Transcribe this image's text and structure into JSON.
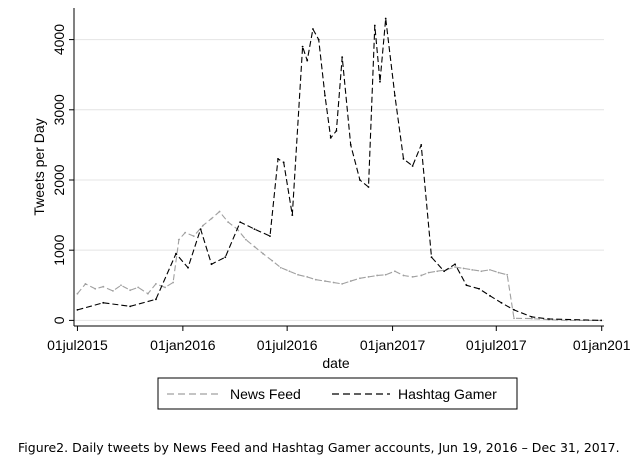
{
  "caption": "Figure2. Daily tweets by News Feed and Hashtag Gamer accounts, Jun 19, 2016 – Dec 31, 2017.",
  "chart_data": {
    "type": "line",
    "xlabel": "date",
    "ylabel": "Tweets per Day",
    "xlim": [
      "2015-06-25",
      "2018-01-05"
    ],
    "ylim": [
      -80,
      4450
    ],
    "x_ticks": [
      {
        "date": "2015-07-01",
        "label": "01jul2015"
      },
      {
        "date": "2016-01-01",
        "label": "01jan2016"
      },
      {
        "date": "2016-07-01",
        "label": "01jul2016"
      },
      {
        "date": "2017-01-01",
        "label": "01jan2017"
      },
      {
        "date": "2017-07-01",
        "label": "01jul2017"
      },
      {
        "date": "2018-01-01",
        "label": "01jan201"
      }
    ],
    "y_ticks": [
      0,
      1000,
      2000,
      3000,
      4000
    ],
    "grid": "horizontal",
    "legend_position": "bottom",
    "series": [
      {
        "name": "News Feed",
        "color": "#a0a0a0",
        "style": "dashed",
        "points": [
          [
            "2015-07-01",
            380
          ],
          [
            "2015-07-15",
            520
          ],
          [
            "2015-08-01",
            450
          ],
          [
            "2015-08-15",
            480
          ],
          [
            "2015-09-01",
            420
          ],
          [
            "2015-09-15",
            500
          ],
          [
            "2015-10-01",
            430
          ],
          [
            "2015-10-15",
            470
          ],
          [
            "2015-11-01",
            380
          ],
          [
            "2015-11-15",
            520
          ],
          [
            "2015-12-01",
            470
          ],
          [
            "2015-12-15",
            540
          ],
          [
            "2015-12-25",
            1150
          ],
          [
            "2016-01-05",
            1250
          ],
          [
            "2016-01-20",
            1200
          ],
          [
            "2016-02-05",
            1350
          ],
          [
            "2016-02-20",
            1450
          ],
          [
            "2016-03-05",
            1550
          ],
          [
            "2016-03-20",
            1400
          ],
          [
            "2016-04-05",
            1300
          ],
          [
            "2016-04-20",
            1150
          ],
          [
            "2016-05-05",
            1050
          ],
          [
            "2016-05-20",
            950
          ],
          [
            "2016-06-05",
            850
          ],
          [
            "2016-06-20",
            750
          ],
          [
            "2016-07-05",
            700
          ],
          [
            "2016-07-20",
            650
          ],
          [
            "2016-08-05",
            620
          ],
          [
            "2016-08-20",
            580
          ],
          [
            "2016-09-05",
            560
          ],
          [
            "2016-09-20",
            540
          ],
          [
            "2016-10-05",
            520
          ],
          [
            "2016-10-20",
            560
          ],
          [
            "2016-11-05",
            600
          ],
          [
            "2016-11-20",
            620
          ],
          [
            "2016-12-05",
            640
          ],
          [
            "2016-12-20",
            650
          ],
          [
            "2017-01-05",
            700
          ],
          [
            "2017-01-20",
            640
          ],
          [
            "2017-02-05",
            620
          ],
          [
            "2017-02-20",
            640
          ],
          [
            "2017-03-05",
            680
          ],
          [
            "2017-03-20",
            700
          ],
          [
            "2017-04-05",
            720
          ],
          [
            "2017-04-20",
            760
          ],
          [
            "2017-05-05",
            740
          ],
          [
            "2017-05-20",
            720
          ],
          [
            "2017-06-05",
            700
          ],
          [
            "2017-06-20",
            720
          ],
          [
            "2017-07-05",
            680
          ],
          [
            "2017-07-20",
            650
          ],
          [
            "2017-08-01",
            30
          ],
          [
            "2017-09-01",
            25
          ],
          [
            "2017-10-01",
            10
          ],
          [
            "2017-11-01",
            0
          ],
          [
            "2017-12-31",
            0
          ]
        ]
      },
      {
        "name": "Hashtag Gamer",
        "color": "#000000",
        "style": "dashed",
        "points": [
          [
            "2015-07-01",
            150
          ],
          [
            "2015-08-15",
            250
          ],
          [
            "2015-10-01",
            200
          ],
          [
            "2015-11-15",
            300
          ],
          [
            "2015-12-20",
            950
          ],
          [
            "2016-01-10",
            750
          ],
          [
            "2016-02-01",
            1300
          ],
          [
            "2016-02-20",
            800
          ],
          [
            "2016-03-15",
            900
          ],
          [
            "2016-04-10",
            1400
          ],
          [
            "2016-05-05",
            1300
          ],
          [
            "2016-06-01",
            1200
          ],
          [
            "2016-06-15",
            2300
          ],
          [
            "2016-06-25",
            2250
          ],
          [
            "2016-07-10",
            1500
          ],
          [
            "2016-07-28",
            3900
          ],
          [
            "2016-08-05",
            3700
          ],
          [
            "2016-08-15",
            4150
          ],
          [
            "2016-08-25",
            4000
          ],
          [
            "2016-09-05",
            3200
          ],
          [
            "2016-09-15",
            2600
          ],
          [
            "2016-09-25",
            2700
          ],
          [
            "2016-10-05",
            3750
          ],
          [
            "2016-10-20",
            2500
          ],
          [
            "2016-11-05",
            2000
          ],
          [
            "2016-11-20",
            1900
          ],
          [
            "2016-12-01",
            4200
          ],
          [
            "2016-12-10",
            3400
          ],
          [
            "2016-12-20",
            4300
          ],
          [
            "2017-01-05",
            3200
          ],
          [
            "2017-01-20",
            2300
          ],
          [
            "2017-02-05",
            2200
          ],
          [
            "2017-02-20",
            2500
          ],
          [
            "2017-03-10",
            900
          ],
          [
            "2017-04-01",
            700
          ],
          [
            "2017-04-20",
            800
          ],
          [
            "2017-05-10",
            500
          ],
          [
            "2017-06-01",
            450
          ],
          [
            "2017-06-20",
            350
          ],
          [
            "2017-07-10",
            250
          ],
          [
            "2017-08-01",
            150
          ],
          [
            "2017-09-01",
            50
          ],
          [
            "2017-10-01",
            20
          ],
          [
            "2017-12-31",
            0
          ]
        ]
      }
    ]
  }
}
